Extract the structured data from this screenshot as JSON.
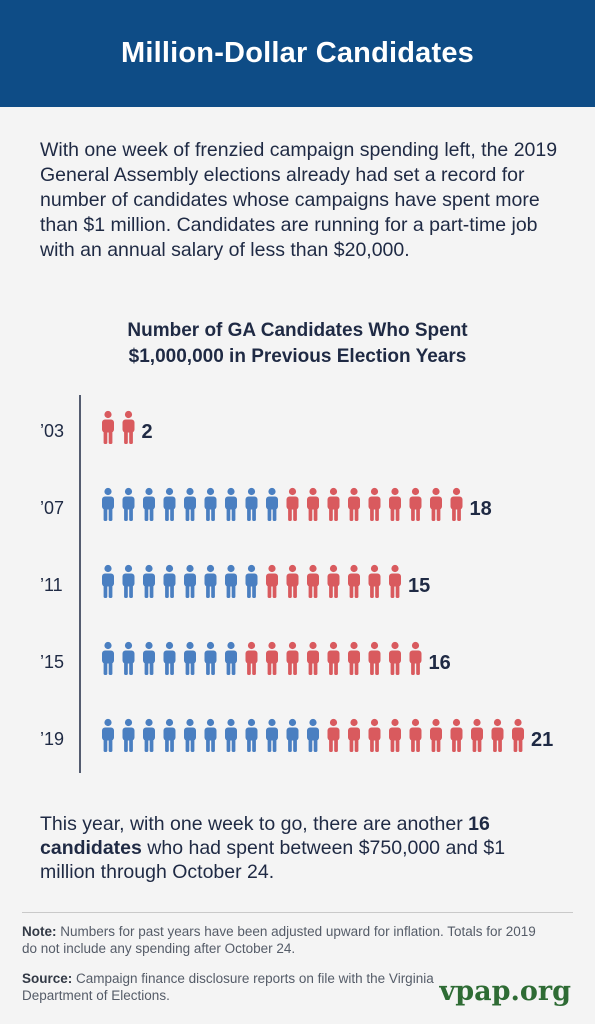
{
  "header": {
    "title": "Million-Dollar Candidates"
  },
  "intro": "With one week of frenzied campaign spending left, the 2019 General Assembly elections already had set a record for number of candidates whose campaigns have spent more than $1 million. Candidates are running for a part-time job with an annual salary of less than $20,000.",
  "chart_data": {
    "type": "bar",
    "title_line1": "Number of GA Candidates Who Spent",
    "title_line2": "$1,000,000 in Previous Election Years",
    "categories": [
      "’03",
      "’07",
      "’11",
      "’15",
      "’19"
    ],
    "values": [
      2,
      18,
      15,
      16,
      21
    ],
    "series": [
      {
        "name": "",
        "color": "#4a7fc1",
        "values": [
          0,
          9,
          8,
          7,
          11
        ]
      },
      {
        "name": "",
        "color": "#d95a5e",
        "values": [
          2,
          9,
          7,
          9,
          10
        ]
      }
    ]
  },
  "outro": {
    "before": "This year, with one week to go, there are another ",
    "bold": "16 candidates",
    "after": " who had spent between $750,000 and $1 million through October 24."
  },
  "note": {
    "label": "Note:",
    "text": " Numbers for past years have been adjusted upward for inflation. Totals for 2019 do not include any spending after October 24."
  },
  "source": {
    "label": "Source:",
    "text": " Campaign finance disclosure reports on file with the Virginia Department of Elections."
  },
  "brand": "vpap.org"
}
